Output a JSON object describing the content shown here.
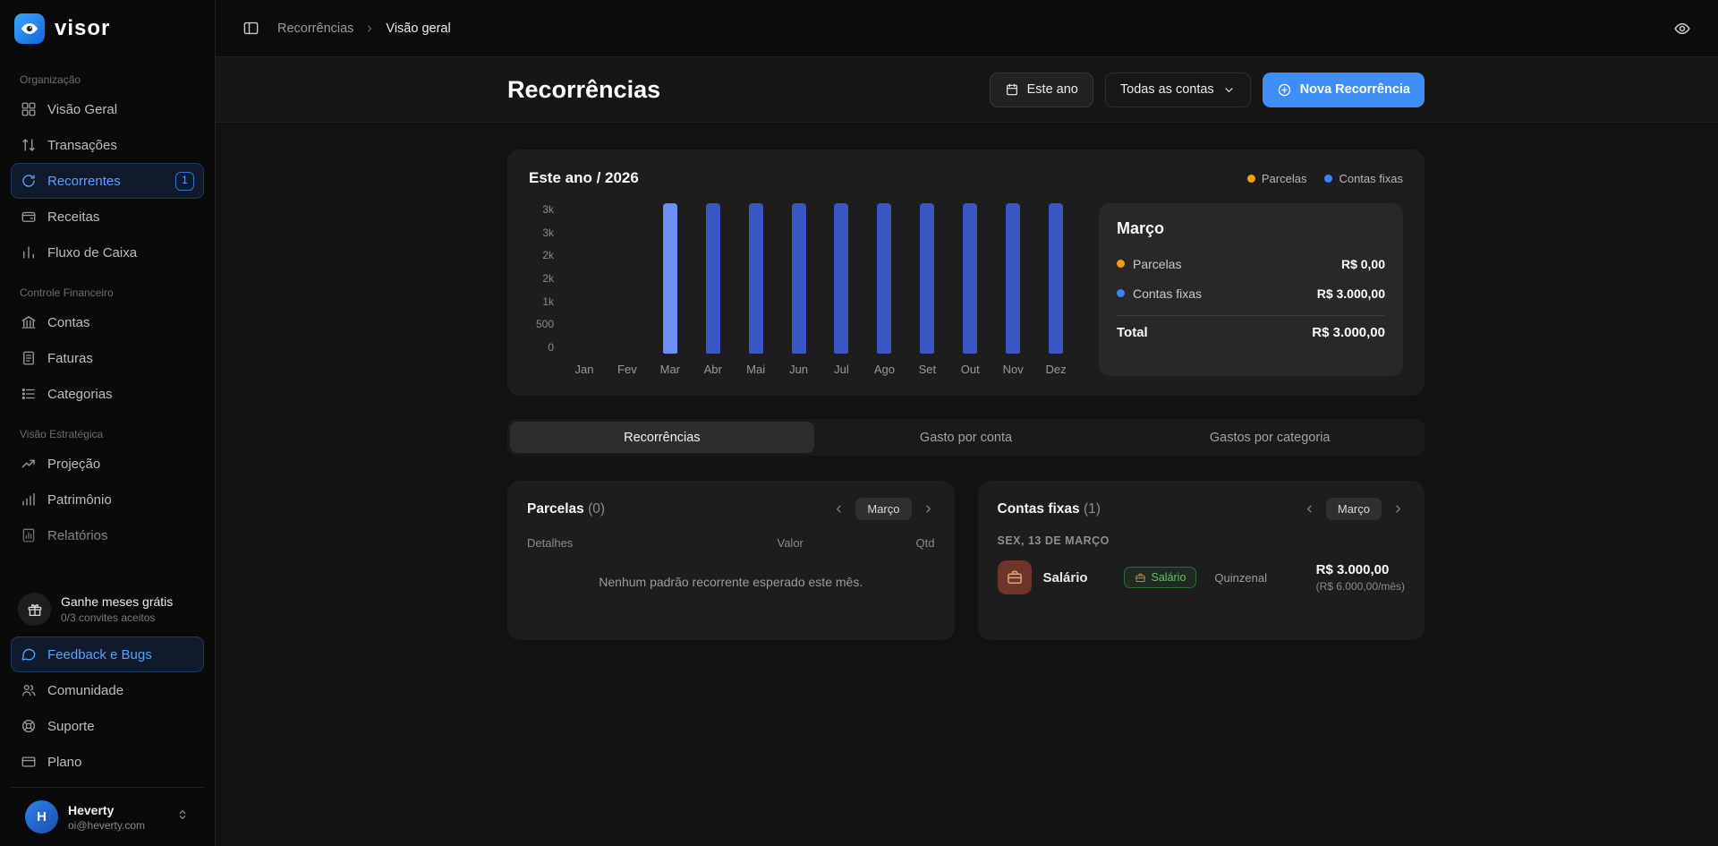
{
  "app": {
    "logo_text": "visor"
  },
  "colors": {
    "accent": "#3f8ef7",
    "bar": "#3c55c5",
    "bar_highlight": "#6e8ef5",
    "parcelas_dot": "#f59f0b",
    "contas_dot": "#3b82f6"
  },
  "topbar": {
    "breadcrumb_parent": "Recorrências",
    "breadcrumb_current": "Visão geral"
  },
  "sidebar": {
    "sections": [
      {
        "label": "Organização",
        "items": [
          {
            "label": "Visão Geral",
            "icon": "grid"
          },
          {
            "label": "Transações",
            "icon": "arrows"
          },
          {
            "label": "Recorrentes",
            "icon": "repeat",
            "badge": "1",
            "active": true
          },
          {
            "label": "Receitas",
            "icon": "wallet"
          },
          {
            "label": "Fluxo de Caixa",
            "icon": "bars"
          }
        ]
      },
      {
        "label": "Controle Financeiro",
        "items": [
          {
            "label": "Contas",
            "icon": "bank"
          },
          {
            "label": "Faturas",
            "icon": "invoice"
          },
          {
            "label": "Categorias",
            "icon": "categories"
          }
        ]
      },
      {
        "label": "Visão Estratégica",
        "items": [
          {
            "label": "Projeção",
            "icon": "trend"
          },
          {
            "label": "Patrimônio",
            "icon": "growth"
          },
          {
            "label": "Relatórios",
            "icon": "report"
          }
        ]
      }
    ],
    "promo": {
      "title": "Ganhe meses grátis",
      "subtitle": "0/3 convites aceitos"
    },
    "footer_items": [
      {
        "label": "Feedback e Bugs",
        "icon": "chat",
        "active": true
      },
      {
        "label": "Comunidade",
        "icon": "people"
      },
      {
        "label": "Suporte",
        "icon": "support"
      },
      {
        "label": "Plano",
        "icon": "card"
      }
    ],
    "user": {
      "initial": "H",
      "name": "Heverty",
      "email": "oi@heverty.com"
    }
  },
  "header": {
    "title": "Recorrências",
    "period_button": "Este ano",
    "account_select": "Todas as contas",
    "new_button": "Nova Recorrência"
  },
  "chart_card": {
    "title": "Este ano / 2026",
    "legend": [
      {
        "label": "Parcelas",
        "color": "#f59f0b"
      },
      {
        "label": "Contas fixas",
        "color": "#3b82f6"
      }
    ]
  },
  "chart_data": {
    "type": "bar",
    "title": "Este ano / 2026",
    "categories": [
      "Jan",
      "Fev",
      "Mar",
      "Abr",
      "Mai",
      "Jun",
      "Jul",
      "Ago",
      "Set",
      "Out",
      "Nov",
      "Dez"
    ],
    "series": [
      {
        "name": "Parcelas",
        "values": [
          0,
          0,
          0,
          0,
          0,
          0,
          0,
          0,
          0,
          0,
          0,
          0
        ]
      },
      {
        "name": "Contas fixas",
        "values": [
          0,
          0,
          3000,
          3000,
          3000,
          3000,
          3000,
          3000,
          3000,
          3000,
          3000,
          3000
        ]
      }
    ],
    "highlighted_month": "Mar",
    "y_ticks": [
      "3k",
      "3k",
      "2k",
      "2k",
      "1k",
      "500",
      "0"
    ],
    "ylim": [
      0,
      3000
    ],
    "legend_position": "top-right",
    "grid": false
  },
  "detail_panel": {
    "title": "Março",
    "rows": [
      {
        "label": "Parcelas",
        "value": "R$ 0,00",
        "color": "#f59f0b"
      },
      {
        "label": "Contas fixas",
        "value": "R$ 3.000,00",
        "color": "#3b82f6"
      }
    ],
    "total_label": "Total",
    "total_value": "R$ 3.000,00"
  },
  "tabs": [
    {
      "label": "Recorrências",
      "active": true
    },
    {
      "label": "Gasto por conta",
      "active": false
    },
    {
      "label": "Gastos por categoria",
      "active": false
    }
  ],
  "parcelas_card": {
    "title": "Parcelas",
    "count": "(0)",
    "month": "Março",
    "columns": {
      "detalhes": "Detalhes",
      "valor": "Valor",
      "qtd": "Qtd"
    },
    "empty": "Nenhum padrão recorrente esperado este mês."
  },
  "contas_card": {
    "title": "Contas fixas",
    "count": "(1)",
    "month": "Março",
    "date_header": "SEX, 13 DE MARÇO",
    "row": {
      "name": "Salário",
      "badge_label": "Salário",
      "frequency": "Quinzenal",
      "value": "R$ 3.000,00",
      "value_sub": "(R$ 6.000,00/mês)"
    }
  }
}
